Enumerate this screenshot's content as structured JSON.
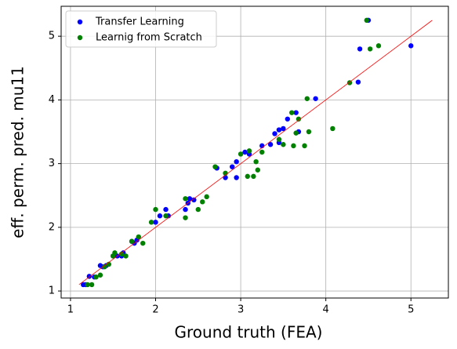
{
  "chart_data": {
    "type": "scatter",
    "xlabel": "Ground truth (FEA)",
    "ylabel": "eff. perm. pred. mu11",
    "xlim": [
      0.89,
      5.44
    ],
    "ylim": [
      0.89,
      5.47
    ],
    "xticks": [
      1,
      2,
      3,
      4,
      5
    ],
    "yticks": [
      1,
      2,
      3,
      4,
      5
    ],
    "grid": true,
    "legend": "upper-left",
    "reference_line": {
      "x": [
        1.1,
        5.25
      ],
      "y": [
        1.1,
        5.25
      ],
      "color": "#ff0000"
    },
    "series": [
      {
        "name": "Transfer Learning",
        "color": "#0000ff",
        "x": [
          1.15,
          1.18,
          1.22,
          1.28,
          1.35,
          1.38,
          1.42,
          1.5,
          1.55,
          1.6,
          1.62,
          1.72,
          1.75,
          1.78,
          2.0,
          2.05,
          2.12,
          2.15,
          2.35,
          2.38,
          2.4,
          2.45,
          2.72,
          2.82,
          2.9,
          2.95,
          2.95,
          3.05,
          3.1,
          3.25,
          3.35,
          3.4,
          3.45,
          3.45,
          3.5,
          3.55,
          3.65,
          3.68,
          3.88,
          4.38,
          4.4,
          4.5,
          5.0
        ],
        "values": [
          1.1,
          1.1,
          1.23,
          1.22,
          1.4,
          1.38,
          1.4,
          1.55,
          1.55,
          1.55,
          1.6,
          1.78,
          1.75,
          1.8,
          2.08,
          2.18,
          2.28,
          2.18,
          2.28,
          2.38,
          2.45,
          2.43,
          2.93,
          2.78,
          2.95,
          2.78,
          3.03,
          3.18,
          3.15,
          3.28,
          3.3,
          3.47,
          3.33,
          3.53,
          3.55,
          3.7,
          3.8,
          3.5,
          4.02,
          4.28,
          4.8,
          5.25,
          4.85
        ]
      },
      {
        "name": "Learnig from Scratch",
        "color": "#008000",
        "x": [
          1.2,
          1.25,
          1.3,
          1.35,
          1.4,
          1.45,
          1.5,
          1.52,
          1.6,
          1.65,
          1.72,
          1.8,
          1.85,
          1.95,
          2.0,
          2.12,
          2.35,
          2.35,
          2.5,
          2.55,
          2.6,
          2.7,
          2.82,
          3.0,
          3.08,
          3.1,
          3.15,
          3.2,
          3.18,
          3.25,
          3.45,
          3.5,
          3.62,
          3.65,
          3.68,
          3.75,
          3.78,
          3.8,
          4.08,
          4.28,
          4.52,
          4.48,
          4.62,
          3.6
        ],
        "values": [
          1.1,
          1.1,
          1.22,
          1.25,
          1.38,
          1.42,
          1.55,
          1.6,
          1.58,
          1.55,
          1.78,
          1.85,
          1.75,
          2.08,
          2.28,
          2.18,
          2.15,
          2.45,
          2.28,
          2.4,
          2.48,
          2.95,
          2.85,
          3.15,
          2.8,
          3.2,
          2.8,
          2.9,
          3.03,
          3.18,
          3.38,
          3.3,
          3.28,
          3.48,
          3.7,
          3.28,
          4.02,
          3.5,
          3.55,
          4.27,
          4.8,
          5.25,
          4.85,
          3.8
        ]
      }
    ]
  }
}
